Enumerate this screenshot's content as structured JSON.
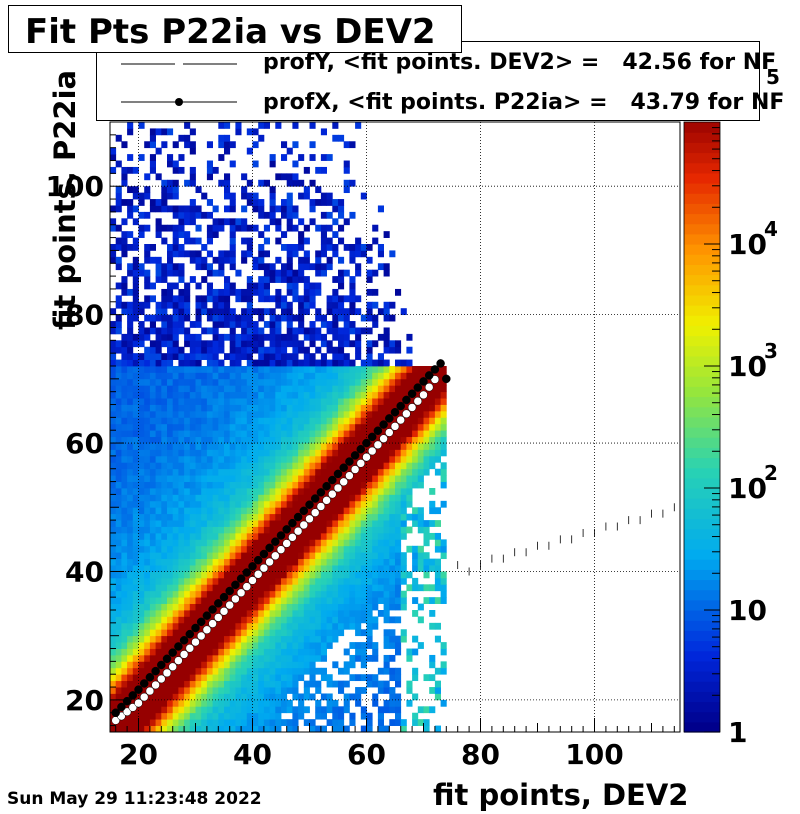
{
  "chart_data": {
    "type": "heatmap",
    "title": "Fit Pts P22ia vs DEV2",
    "xlabel": "fit points, DEV2",
    "ylabel": "fit points, P22ia",
    "xlim": [
      15,
      115
    ],
    "ylim": [
      15,
      110
    ],
    "x_ticks": [
      "20",
      "40",
      "60",
      "80",
      "100"
    ],
    "y_ticks": [
      "20",
      "40",
      "60",
      "80",
      "100"
    ],
    "colorbar": {
      "scale": "log",
      "range": [
        1,
        100000
      ],
      "tick_labels": [
        "1",
        "10",
        "10",
        "2",
        "10",
        "3",
        "10",
        "4",
        "5"
      ],
      "ticks": [
        {
          "base": "1",
          "exp": ""
        },
        {
          "base": "10",
          "exp": ""
        },
        {
          "base": "10",
          "exp": "2"
        },
        {
          "base": "10",
          "exp": "3"
        },
        {
          "base": "10",
          "exp": "4"
        },
        {
          "base": "",
          "exp": "5"
        }
      ]
    },
    "grid": true,
    "legend": {
      "placement": "top",
      "entries": [
        "profY, <fit points. DEV2> =   42.56 for NF",
        "profX, <fit points. P22ia> =   43.79 for NF"
      ]
    },
    "series": [
      {
        "name": "profY",
        "marker": "white-circle",
        "x": [
          16,
          20,
          25,
          30,
          35,
          40,
          45,
          50,
          55,
          60,
          65,
          70,
          72
        ],
        "y": [
          16.8,
          19.5,
          24.2,
          29.0,
          33.8,
          38.6,
          43.4,
          48.2,
          53.0,
          57.8,
          62.6,
          67.5,
          69.9
        ]
      },
      {
        "name": "profX",
        "marker": "black-circle",
        "x": [
          16,
          20,
          25,
          30,
          35,
          40,
          45,
          50,
          55,
          60,
          65,
          70,
          73,
          74
        ],
        "y": [
          18.0,
          21.6,
          26.4,
          31.2,
          36.0,
          40.8,
          45.6,
          50.4,
          55.2,
          60.0,
          64.8,
          69.6,
          72.4,
          70.0
        ]
      }
    ],
    "scatter_tail": {
      "x": [
        76,
        78,
        80,
        82,
        84,
        86,
        88,
        90,
        92,
        94,
        96,
        98,
        100,
        102,
        104,
        106,
        108,
        110,
        112,
        114
      ],
      "y": [
        41,
        40,
        41,
        42,
        42,
        43,
        43,
        44,
        44,
        45,
        45,
        46,
        46,
        47,
        47,
        48,
        48,
        49,
        49,
        50
      ]
    }
  },
  "timestamp": "Sun May 29 11:23:48 2022"
}
